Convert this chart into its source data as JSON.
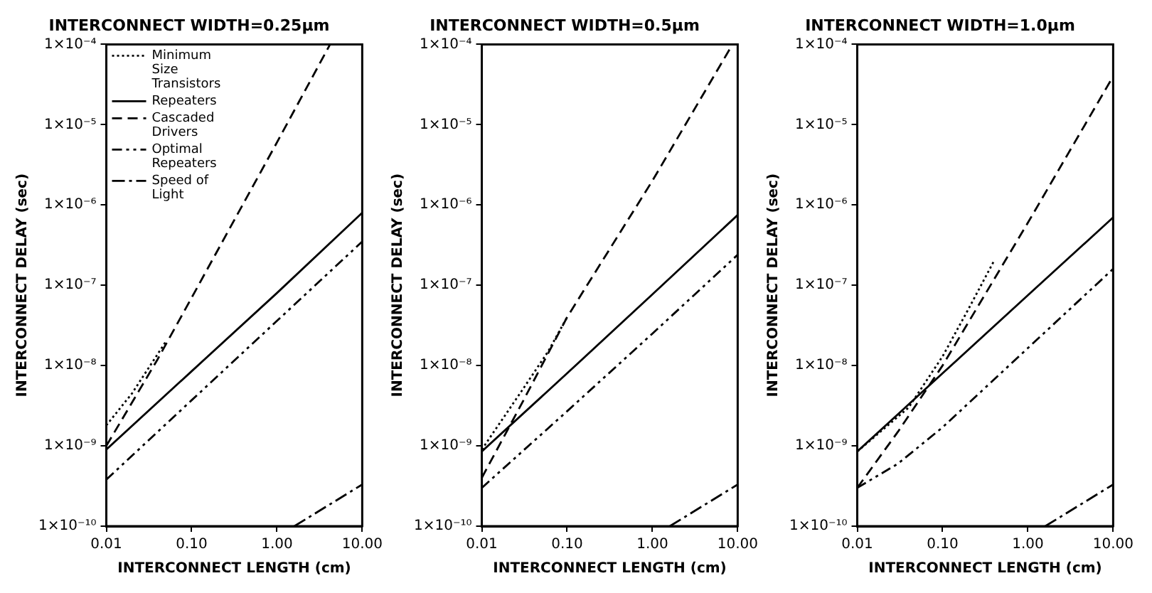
{
  "chart_data": [
    {
      "type": "line",
      "title": "INTERCONNECT WIDTH=0.25μm",
      "xlabel": "INTERCONNECT LENGTH (cm)",
      "ylabel": "INTERCONNECT DELAY (sec)",
      "log": "xy",
      "grid": false,
      "legend": "top left",
      "marker": "none",
      "xlim": [
        0.01,
        10
      ],
      "ylim": [
        1e-10,
        0.0001
      ],
      "xticks": [
        {
          "value": 0.01,
          "label": "0.01"
        },
        {
          "value": 0.1,
          "label": "0.10"
        },
        {
          "value": 1,
          "label": "1.00"
        },
        {
          "value": 10,
          "label": "10.00"
        }
      ],
      "yticks": [
        {
          "value": 1e-10,
          "label": "1×10⁻¹⁰"
        },
        {
          "value": 1e-09,
          "label": "1×10⁻⁹"
        },
        {
          "value": 1e-08,
          "label": "1×10⁻⁸"
        },
        {
          "value": 1e-07,
          "label": "1×10⁻⁷"
        },
        {
          "value": 1e-06,
          "label": "1×10⁻⁶"
        },
        {
          "value": 1e-05,
          "label": "1×10⁻⁵"
        },
        {
          "value": 0.0001,
          "label": "1×10⁻⁴"
        }
      ],
      "series": [
        {
          "name": "Minimum Size Transistors",
          "color": "#000000",
          "line_style": "dotted",
          "x": [
            0.01,
            0.02,
            0.05
          ],
          "values": [
            1.8e-09,
            4.5e-09,
            2e-08
          ]
        },
        {
          "name": "Repeaters",
          "color": "#000000",
          "line_style": "solid",
          "x": [
            0.01,
            0.1,
            1,
            10
          ],
          "values": [
            9e-10,
            8.5e-09,
            8e-08,
            8e-07
          ]
        },
        {
          "name": "Cascaded Drivers",
          "color": "#000000",
          "line_style": "dashed",
          "x": [
            0.01,
            0.04,
            0.1,
            1,
            4.2
          ],
          "values": [
            1e-09,
            1.2e-08,
            7e-08,
            6e-06,
            0.0001
          ]
        },
        {
          "name": "Optimal Repeaters",
          "color": "#000000",
          "line_style": "dashdotdot",
          "x": [
            0.01,
            0.1,
            1,
            10
          ],
          "values": [
            3.8e-10,
            3.7e-09,
            3.6e-08,
            3.5e-07
          ]
        },
        {
          "name": "Speed of Light",
          "color": "#000000",
          "line_style": "dashdot",
          "x": [
            1.6,
            10
          ],
          "values": [
            1e-10,
            3.3e-10
          ]
        }
      ]
    },
    {
      "type": "line",
      "title": "INTERCONNECT WIDTH=0.5μm",
      "xlabel": "INTERCONNECT LENGTH (cm)",
      "ylabel": "INTERCONNECT DELAY (sec)",
      "log": "xy",
      "grid": false,
      "marker": "none",
      "xlim": [
        0.01,
        10
      ],
      "ylim": [
        1e-10,
        0.0001
      ],
      "xticks": [
        {
          "value": 0.01,
          "label": "0.01"
        },
        {
          "value": 0.1,
          "label": "0.10"
        },
        {
          "value": 1,
          "label": "1.00"
        },
        {
          "value": 10,
          "label": "10.00"
        }
      ],
      "yticks": [
        {
          "value": 1e-10,
          "label": "1×10⁻¹⁰"
        },
        {
          "value": 1e-09,
          "label": "1×10⁻⁹"
        },
        {
          "value": 1e-08,
          "label": "1×10⁻⁸"
        },
        {
          "value": 1e-07,
          "label": "1×10⁻⁷"
        },
        {
          "value": 1e-06,
          "label": "1×10⁻⁶"
        },
        {
          "value": 1e-05,
          "label": "1×10⁻⁵"
        },
        {
          "value": 0.0001,
          "label": "1×10⁻⁴"
        }
      ],
      "series": [
        {
          "color": "#000000",
          "line_style": "dotted",
          "x": [
            0.01,
            0.03,
            0.06,
            0.1
          ],
          "values": [
            9e-10,
            5e-09,
            1.5e-08,
            4e-08
          ]
        },
        {
          "color": "#000000",
          "line_style": "solid",
          "x": [
            0.01,
            0.1,
            1,
            10
          ],
          "values": [
            8.5e-10,
            8e-09,
            7.7e-08,
            7.5e-07
          ]
        },
        {
          "color": "#000000",
          "line_style": "dashed",
          "x": [
            0.01,
            0.03,
            0.1,
            1,
            8.7
          ],
          "values": [
            4e-10,
            3.5e-09,
            4e-08,
            2e-06,
            0.0001
          ]
        },
        {
          "color": "#000000",
          "line_style": "dashdotdot",
          "x": [
            0.01,
            0.1,
            1,
            10
          ],
          "values": [
            3e-10,
            2.7e-09,
            2.5e-08,
            2.4e-07
          ]
        },
        {
          "color": "#000000",
          "line_style": "dashdot",
          "x": [
            1.6,
            10
          ],
          "values": [
            1e-10,
            3.3e-10
          ]
        }
      ]
    },
    {
      "type": "line",
      "title": "INTERCONNECT WIDTH=1.0μm",
      "xlabel": "INTERCONNECT LENGTH (cm)",
      "ylabel": "INTERCONNECT DELAY (sec)",
      "log": "xy",
      "grid": false,
      "marker": "none",
      "xlim": [
        0.01,
        10
      ],
      "ylim": [
        1e-10,
        0.0001
      ],
      "xticks": [
        {
          "value": 0.01,
          "label": "0.01"
        },
        {
          "value": 0.1,
          "label": "0.10"
        },
        {
          "value": 1,
          "label": "1.00"
        },
        {
          "value": 10,
          "label": "10.00"
        }
      ],
      "yticks": [
        {
          "value": 1e-10,
          "label": "1×10⁻¹⁰"
        },
        {
          "value": 1e-09,
          "label": "1×10⁻⁹"
        },
        {
          "value": 1e-08,
          "label": "1×10⁻⁸"
        },
        {
          "value": 1e-07,
          "label": "1×10⁻⁷"
        },
        {
          "value": 1e-06,
          "label": "1×10⁻⁶"
        },
        {
          "value": 1e-05,
          "label": "1×10⁻⁵"
        },
        {
          "value": 0.0001,
          "label": "1×10⁻⁴"
        }
      ],
      "series": [
        {
          "color": "#000000",
          "line_style": "dotted",
          "x": [
            0.01,
            0.04,
            0.1,
            0.2,
            0.4
          ],
          "values": [
            8.5e-10,
            3e-09,
            1.3e-08,
            5e-08,
            2e-07
          ]
        },
        {
          "color": "#000000",
          "line_style": "solid",
          "x": [
            0.01,
            0.1,
            1,
            10
          ],
          "values": [
            8.5e-10,
            8e-09,
            7.5e-08,
            7e-07
          ]
        },
        {
          "color": "#000000",
          "line_style": "dashed",
          "x": [
            0.01,
            0.03,
            0.1,
            1,
            10
          ],
          "values": [
            3e-10,
            1.5e-09,
            1e-08,
            6e-07,
            4e-05
          ]
        },
        {
          "color": "#000000",
          "line_style": "dashdotdot",
          "x": [
            0.01,
            0.03,
            0.1,
            1,
            10
          ],
          "values": [
            3e-10,
            6e-10,
            1.7e-09,
            1.65e-08,
            1.6e-07
          ]
        },
        {
          "color": "#000000",
          "line_style": "dashdot",
          "x": [
            1.6,
            10
          ],
          "values": [
            1e-10,
            3.3e-10
          ]
        }
      ]
    }
  ]
}
